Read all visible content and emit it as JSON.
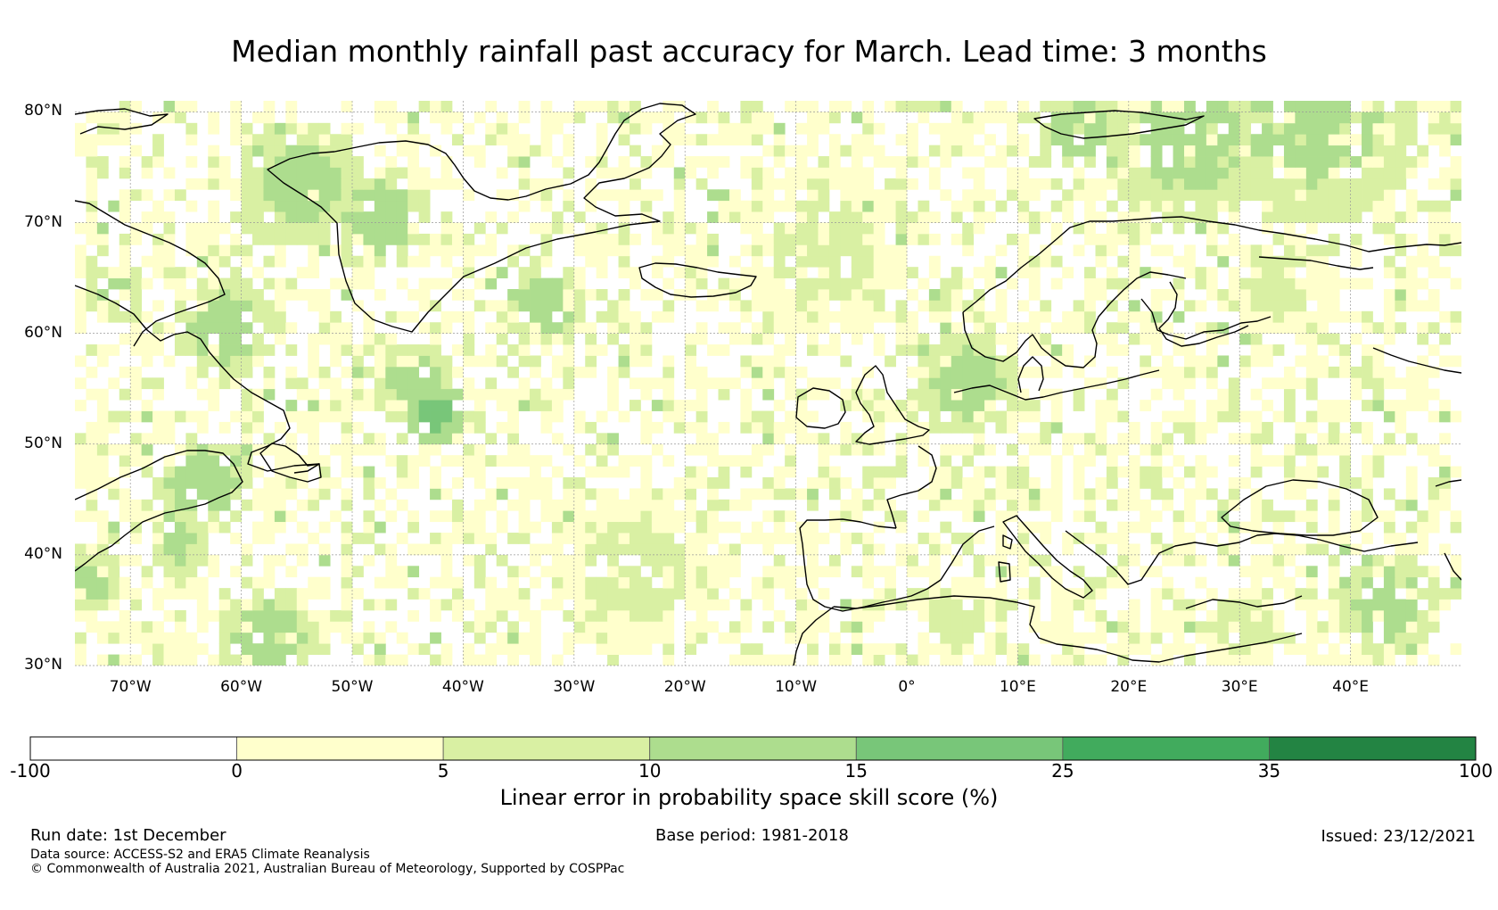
{
  "title": "Median monthly rainfall past accuracy for March. Lead time: 3 months",
  "map": {
    "extent": {
      "lon_min": -75,
      "lon_max": 50,
      "lat_min": 30,
      "lat_max": 81
    },
    "lat_ticks": [
      {
        "value": 80,
        "label": "80°N"
      },
      {
        "value": 70,
        "label": "70°N"
      },
      {
        "value": 60,
        "label": "60°N"
      },
      {
        "value": 50,
        "label": "50°N"
      },
      {
        "value": 40,
        "label": "40°N"
      },
      {
        "value": 30,
        "label": "30°N"
      }
    ],
    "lon_ticks": [
      {
        "value": -70,
        "label": "70°W"
      },
      {
        "value": -60,
        "label": "60°W"
      },
      {
        "value": -50,
        "label": "50°W"
      },
      {
        "value": -40,
        "label": "40°W"
      },
      {
        "value": -30,
        "label": "30°W"
      },
      {
        "value": -20,
        "label": "20°W"
      },
      {
        "value": -10,
        "label": "10°W"
      },
      {
        "value": 0,
        "label": "0°"
      },
      {
        "value": 10,
        "label": "10°E"
      },
      {
        "value": 20,
        "label": "20°E"
      },
      {
        "value": 30,
        "label": "30°E"
      },
      {
        "value": 40,
        "label": "40°E"
      }
    ],
    "skill_hotspots": [
      {
        "lon": -43,
        "lat": 52.5,
        "r": 3,
        "level": 4
      },
      {
        "lon": -45,
        "lat": 55,
        "r": 4,
        "level": 3
      },
      {
        "lon": -62,
        "lat": 60,
        "r": 5,
        "level": 3
      },
      {
        "lon": -72,
        "lat": 63,
        "r": 3,
        "level": 3
      },
      {
        "lon": -55,
        "lat": 73,
        "r": 6,
        "level": 3
      },
      {
        "lon": -48,
        "lat": 70,
        "r": 5,
        "level": 3
      },
      {
        "lon": -64,
        "lat": 46,
        "r": 5,
        "level": 3
      },
      {
        "lon": -66,
        "lat": 40.5,
        "r": 3,
        "level": 3
      },
      {
        "lon": -58,
        "lat": 32,
        "r": 5,
        "level": 3
      },
      {
        "lon": 36,
        "lat": 79,
        "r": 10,
        "level": 3
      },
      {
        "lon": 25,
        "lat": 77,
        "r": 8,
        "level": 3
      },
      {
        "lon": 15,
        "lat": 78,
        "r": 4,
        "level": 3
      },
      {
        "lon": -8,
        "lat": 67,
        "r": 8,
        "level": 2
      },
      {
        "lon": 5,
        "lat": 55,
        "r": 5,
        "level": 3
      },
      {
        "lon": -25,
        "lat": 38,
        "r": 8,
        "level": 2
      },
      {
        "lon": -33,
        "lat": 62,
        "r": 4,
        "level": 3
      },
      {
        "lon": 33,
        "lat": 64,
        "r": 5,
        "level": 2
      },
      {
        "lon": 43,
        "lat": 35,
        "r": 5,
        "level": 3
      },
      {
        "lon": 4,
        "lat": 34,
        "r": 4,
        "level": 2
      },
      {
        "lon": -74,
        "lat": 37,
        "r": 3,
        "level": 3
      },
      {
        "lon": 30,
        "lat": 33,
        "r": 4,
        "level": 2
      }
    ]
  },
  "colorbar": {
    "bins": [
      {
        "from": "-100",
        "to": "0",
        "color": "#ffffff"
      },
      {
        "from": "0",
        "to": "5",
        "color": "#ffffcc"
      },
      {
        "from": "5",
        "to": "10",
        "color": "#d9f0a3"
      },
      {
        "from": "10",
        "to": "15",
        "color": "#addd8e"
      },
      {
        "from": "15",
        "to": "25",
        "color": "#78c679"
      },
      {
        "from": "25",
        "to": "35",
        "color": "#41ab5d"
      },
      {
        "from": "35",
        "to": "100",
        "color": "#238443"
      }
    ],
    "tick_labels": [
      "-100",
      "0",
      "5",
      "10",
      "15",
      "25",
      "35",
      "100"
    ],
    "label": "Linear error in probability space skill score (%)"
  },
  "footer": {
    "run_date": "Run date: 1st December",
    "base_period": "Base period: 1981-2018",
    "issued": "Issued: 23/12/2021",
    "data_source": "Data source: ACCESS-S2 and ERA5 Climate Reanalysis",
    "copyright": "© Commonwealth of Australia 2021, Australian Bureau of Meteorology, Supported by COSPPac"
  }
}
